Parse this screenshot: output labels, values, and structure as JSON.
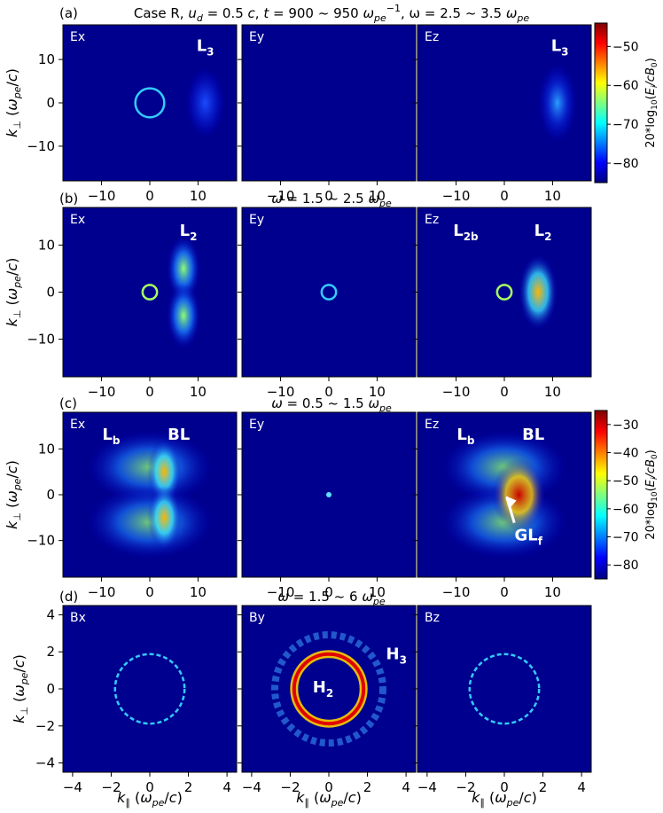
{
  "chart_data": [
    {
      "type": "heatmap",
      "row_label": "(a)",
      "title_prefix": "Case R, ",
      "title_parts": [
        "u",
        "d",
        " = 0.5 ",
        "c",
        ", ",
        "t",
        " = 900 ~ 950 ",
        "ω",
        "pe",
        "−1",
        ", ω = 2.5 ~ 3.5 ",
        "ω",
        "pe"
      ],
      "ylabel": "k⊥ (ωpe/c)",
      "xlim": [
        -18,
        18
      ],
      "ylim": [
        -18,
        18
      ],
      "xticks": [
        -10,
        0,
        10
      ],
      "yticks": [
        -10,
        0,
        10
      ],
      "panels": [
        {
          "name": "Ex",
          "annotations": [
            {
              "text": "L",
              "sub": "3",
              "x": 11.5,
              "y": 12
            }
          ],
          "features": [
            {
              "kind": "ring",
              "cx": 0,
              "cy": 0,
              "r": 3,
              "level": "low"
            },
            {
              "kind": "blob",
              "cx": 11.5,
              "cy": 0,
              "level": "very-low"
            }
          ]
        },
        {
          "name": "Ey",
          "annotations": [],
          "features": []
        },
        {
          "name": "Ez",
          "annotations": [
            {
              "text": "L",
              "sub": "3",
              "x": 11.5,
              "y": 12
            }
          ],
          "features": [
            {
              "kind": "blob",
              "cx": 11,
              "cy": 0,
              "level": "low"
            }
          ]
        }
      ],
      "colorbar": {
        "label": "20*log10(Ei/cB0)",
        "ticks": [
          -50,
          -60,
          -70,
          -80
        ],
        "range": [
          -85,
          -44
        ],
        "colormap": "jet"
      }
    },
    {
      "type": "heatmap",
      "row_label": "(b)",
      "title_parts": [
        "ω",
        " = 1.5 ~ 2.5 ",
        "ω",
        "pe"
      ],
      "ylabel": "k⊥ (ωpe/c)",
      "xlim": [
        -18,
        18
      ],
      "ylim": [
        -18,
        18
      ],
      "xticks": [
        -10,
        0,
        10
      ],
      "yticks": [
        -10,
        0,
        10
      ],
      "panels": [
        {
          "name": "Ex",
          "annotations": [
            {
              "text": "L",
              "sub": "2",
              "x": 8,
              "y": 12
            }
          ],
          "features": [
            {
              "kind": "ring",
              "cx": 0,
              "cy": 0,
              "r": 1.5,
              "level": "mid"
            },
            {
              "kind": "lobes",
              "cx": 7,
              "level": "mid"
            }
          ]
        },
        {
          "name": "Ey",
          "annotations": [],
          "features": [
            {
              "kind": "ring",
              "cx": 0,
              "cy": 0,
              "r": 1.5,
              "level": "low"
            }
          ]
        },
        {
          "name": "Ez",
          "annotations": [
            {
              "text": "L",
              "sub": "2b",
              "x": -8,
              "y": 12
            },
            {
              "text": "L",
              "sub": "2",
              "x": 8,
              "y": 12
            }
          ],
          "features": [
            {
              "kind": "ring",
              "cx": 0,
              "cy": 0,
              "r": 1.5,
              "level": "mid"
            },
            {
              "kind": "blob",
              "cx": 7,
              "cy": 0,
              "level": "high"
            }
          ]
        }
      ]
    },
    {
      "type": "heatmap",
      "row_label": "(c)",
      "title_parts": [
        "ω",
        " = 0.5 ~ 1.5 ",
        "ω",
        "pe"
      ],
      "ylabel": "k⊥ (ωpe/c)",
      "xlim": [
        -18,
        18
      ],
      "ylim": [
        -18,
        18
      ],
      "xticks": [
        -10,
        0,
        10
      ],
      "yticks": [
        -10,
        0,
        10
      ],
      "panels": [
        {
          "name": "Ex",
          "annotations": [
            {
              "text": "L",
              "sub": "b",
              "x": -8,
              "y": 12
            },
            {
              "text": "BL",
              "sub": "",
              "x": 6,
              "y": 12
            }
          ],
          "features": [
            {
              "kind": "broad",
              "cx": 0,
              "level": "mid"
            },
            {
              "kind": "lobes",
              "cx": 3,
              "level": "high"
            }
          ]
        },
        {
          "name": "Ey",
          "annotations": [],
          "features": [
            {
              "kind": "dot",
              "cx": 0,
              "cy": 0,
              "level": "low"
            }
          ]
        },
        {
          "name": "Ez",
          "annotations": [
            {
              "text": "L",
              "sub": "b",
              "x": -8,
              "y": 12
            },
            {
              "text": "BL",
              "sub": "",
              "x": 6,
              "y": 12
            },
            {
              "text": "GL",
              "sub": "f",
              "x": 5,
              "y": -10
            }
          ],
          "features": [
            {
              "kind": "broad",
              "cx": 0,
              "level": "mid"
            },
            {
              "kind": "blob",
              "cx": 3,
              "cy": 0,
              "level": "very-high"
            }
          ]
        }
      ],
      "colorbar": {
        "label": "20*log10(Ei/cB0)",
        "ticks": [
          -30,
          -40,
          -50,
          -60,
          -70,
          -80
        ],
        "range": [
          -85,
          -25
        ],
        "colormap": "jet"
      }
    },
    {
      "type": "heatmap",
      "row_label": "(d)",
      "title_parts": [
        "ω",
        " = 1.5 ~ 6 ",
        "ω",
        "pe"
      ],
      "xlabel": "k∥ (ωpe/c)",
      "ylabel": "k⊥ (ωpe/c)",
      "xlim": [
        -4.5,
        4.5
      ],
      "ylim": [
        -4.5,
        4.5
      ],
      "xticks": [
        -4,
        -2,
        0,
        2,
        4
      ],
      "yticks": [
        -4,
        -2,
        0,
        2,
        4
      ],
      "panels": [
        {
          "name": "Bx",
          "annotations": [],
          "features": [
            {
              "kind": "ring",
              "cx": 0,
              "cy": 0,
              "r": 1.8,
              "level": "low"
            }
          ]
        },
        {
          "name": "By",
          "annotations": [
            {
              "text": "H",
              "sub": "2",
              "x": -0.3,
              "y": -0.2
            },
            {
              "text": "H",
              "sub": "3",
              "x": 3.5,
              "y": 1.6
            }
          ],
          "features": [
            {
              "kind": "ring",
              "cx": 0,
              "cy": 0,
              "r": 1.8,
              "level": "very-high"
            },
            {
              "kind": "ring",
              "cx": 0,
              "cy": 0,
              "r": 2.8,
              "level": "mid"
            }
          ]
        },
        {
          "name": "Bz",
          "annotations": [],
          "features": [
            {
              "kind": "ring",
              "cx": 0,
              "cy": 0,
              "r": 1.8,
              "level": "low"
            }
          ]
        }
      ]
    }
  ]
}
